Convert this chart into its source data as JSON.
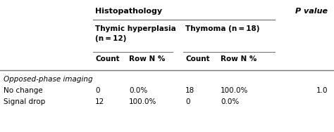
{
  "title_histopath": "Histopathology",
  "title_pvalue": "P value",
  "col1_header_line1": "Thymic hyperplasia",
  "col1_header_line2": "(n = 12)",
  "col2_header": "Thymoma (n = 18)",
  "section_label": "Opposed-phase imaging",
  "rows": [
    [
      "No change",
      "0",
      "0.0%",
      "18",
      "100.0%",
      "1.0"
    ],
    [
      "Signal drop",
      "12",
      "100.0%",
      "0",
      "0.0%",
      ""
    ]
  ],
  "bg_color": "#ffffff",
  "text_color": "#000000",
  "line_color": "#777777",
  "font_family": "DejaVu Sans",
  "font_size": 7.5
}
